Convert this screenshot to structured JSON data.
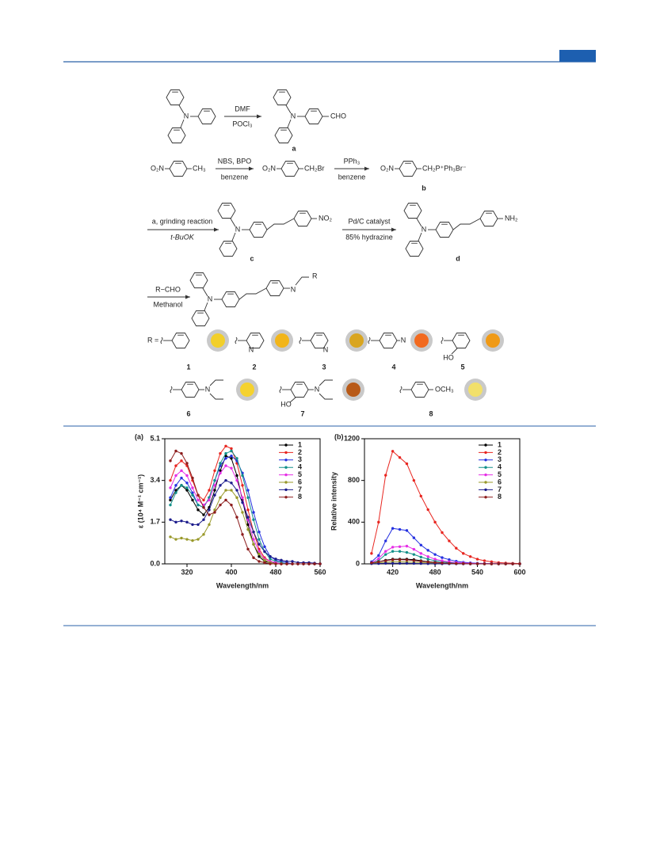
{
  "scheme": {
    "row1": {
      "reagents": [
        "DMF",
        "POCl₃"
      ],
      "groups": [
        "N",
        "N",
        "CHO"
      ],
      "label": "a"
    },
    "row2": {
      "groups": [
        "O₂N",
        "CH₃",
        "O₂N",
        "CH₂Br",
        "O₂N",
        "CH₂P⁺Ph₃Br⁻"
      ],
      "reagents": [
        "NBS, BPO",
        "benzene",
        "PPh₃",
        "benzene"
      ],
      "label": "b"
    },
    "row3": {
      "reagents": [
        "a, grinding reaction",
        "t-BuOK",
        "Pd/C catalyst",
        "85% hydrazine"
      ],
      "groups": [
        "N",
        "NO₂",
        "N",
        "NH₂"
      ],
      "labels": [
        "c",
        "d"
      ]
    },
    "row4": {
      "reagents": [
        "R−CHO",
        "Methanol"
      ],
      "groups": [
        "N",
        "N",
        "R"
      ]
    },
    "substituents": {
      "prefix": "R =",
      "groups": [
        "N",
        "N",
        "N",
        "HO",
        "N",
        "HO",
        "N",
        "OCH₃"
      ],
      "compounds": [
        "1",
        "2",
        "3",
        "4",
        "5",
        "6",
        "7",
        "8"
      ]
    }
  },
  "chart_data": [
    {
      "type": "line",
      "panel": "(a)",
      "xlabel": "Wavelength/nm",
      "ylabel": "ε (10⁴ M⁻¹ cm⁻¹)",
      "x": [
        290,
        300,
        310,
        320,
        330,
        340,
        350,
        360,
        370,
        380,
        390,
        400,
        410,
        420,
        430,
        440,
        450,
        460,
        470,
        480,
        490,
        500,
        510,
        520,
        530,
        540,
        550,
        560
      ],
      "xlim": [
        280,
        560
      ],
      "xticks": [
        320,
        400,
        480,
        560
      ],
      "ylim": [
        0,
        5.1
      ],
      "yticks": [
        {
          "value": 0,
          "label": "0.0"
        },
        1.7,
        3.4,
        5.1
      ],
      "legend": "upper right",
      "series": [
        {
          "name": "1",
          "color": "#000000",
          "values": [
            2.6,
            3.0,
            3.2,
            3.0,
            2.6,
            2.2,
            2.0,
            2.3,
            3.0,
            3.8,
            4.4,
            4.3,
            3.6,
            2.6,
            1.6,
            0.8,
            0.3,
            0.1,
            0.05,
            0.02,
            0,
            0,
            0,
            0,
            0,
            0,
            0,
            0
          ]
        },
        {
          "name": "2",
          "color": "#e8251f",
          "values": [
            3.4,
            4.0,
            4.2,
            4.0,
            3.4,
            2.8,
            2.6,
            3.0,
            3.8,
            4.5,
            4.8,
            4.7,
            4.1,
            3.2,
            2.2,
            1.3,
            0.6,
            0.25,
            0.1,
            0.05,
            0,
            0,
            0,
            0,
            0,
            0,
            0,
            0
          ]
        },
        {
          "name": "3",
          "color": "#2531e0",
          "values": [
            2.7,
            3.2,
            3.5,
            3.3,
            2.9,
            2.4,
            2.3,
            2.7,
            3.4,
            4.0,
            4.3,
            4.4,
            4.2,
            3.7,
            3.0,
            2.1,
            1.3,
            0.7,
            0.3,
            0.15,
            0.1,
            0.05,
            0,
            0,
            0,
            0,
            0,
            0
          ]
        },
        {
          "name": "4",
          "color": "#13918a",
          "values": [
            2.4,
            2.9,
            3.2,
            3.1,
            2.8,
            2.4,
            2.3,
            2.7,
            3.4,
            4.1,
            4.5,
            4.6,
            4.3,
            3.6,
            2.7,
            1.8,
            1.0,
            0.5,
            0.2,
            0.1,
            0.05,
            0,
            0,
            0,
            0,
            0,
            0,
            0
          ]
        },
        {
          "name": "5",
          "color": "#e62ee6",
          "values": [
            3.1,
            3.6,
            3.8,
            3.6,
            3.1,
            2.6,
            2.4,
            2.6,
            3.2,
            3.7,
            4.0,
            3.9,
            3.4,
            2.7,
            1.8,
            1.0,
            0.5,
            0.2,
            0.1,
            0.05,
            0,
            0,
            0,
            0,
            0,
            0,
            0,
            0
          ]
        },
        {
          "name": "6",
          "color": "#99992a",
          "values": [
            1.1,
            1.0,
            1.05,
            1.0,
            0.95,
            1.0,
            1.2,
            1.6,
            2.2,
            2.7,
            3.0,
            3.0,
            2.7,
            2.1,
            1.4,
            0.8,
            0.4,
            0.15,
            0.05,
            0,
            0,
            0,
            0,
            0,
            0,
            0,
            0,
            0
          ]
        },
        {
          "name": "7",
          "color": "#1c1c8c",
          "values": [
            1.8,
            1.7,
            1.75,
            1.7,
            1.6,
            1.6,
            1.8,
            2.2,
            2.8,
            3.2,
            3.4,
            3.3,
            3.0,
            2.5,
            1.9,
            1.3,
            0.8,
            0.5,
            0.3,
            0.2,
            0.15,
            0.1,
            0.1,
            0.05,
            0.05,
            0.05,
            0.03,
            0
          ]
        },
        {
          "name": "8",
          "color": "#8c1c1c",
          "values": [
            4.2,
            4.6,
            4.5,
            4.1,
            3.5,
            2.8,
            2.3,
            2.0,
            2.1,
            2.4,
            2.6,
            2.4,
            1.9,
            1.2,
            0.6,
            0.25,
            0.1,
            0.05,
            0,
            0,
            0,
            0,
            0,
            0,
            0,
            0,
            0,
            0
          ]
        }
      ]
    },
    {
      "type": "line",
      "panel": "(b)",
      "xlabel": "Wavelength/nm",
      "ylabel": "Relative intensity",
      "x": [
        390,
        400,
        410,
        420,
        430,
        440,
        450,
        460,
        470,
        480,
        490,
        500,
        510,
        520,
        530,
        540,
        550,
        560,
        570,
        580,
        590,
        600
      ],
      "xlim": [
        380,
        600
      ],
      "xticks": [
        420,
        480,
        540,
        600
      ],
      "ylim": [
        0,
        1200
      ],
      "yticks": [
        0,
        400,
        800,
        1200
      ],
      "legend": "upper right",
      "series": [
        {
          "name": "1",
          "color": "#000000",
          "values": [
            10,
            20,
            35,
            45,
            45,
            45,
            40,
            30,
            20,
            15,
            10,
            6,
            4,
            2,
            1,
            1,
            0,
            0,
            0,
            0,
            0,
            0
          ]
        },
        {
          "name": "2",
          "color": "#e8251f",
          "values": [
            100,
            400,
            850,
            1080,
            1020,
            960,
            800,
            650,
            520,
            400,
            300,
            220,
            150,
            100,
            70,
            45,
            30,
            20,
            12,
            8,
            5,
            3
          ]
        },
        {
          "name": "3",
          "color": "#2531e0",
          "values": [
            20,
            80,
            220,
            340,
            330,
            320,
            250,
            180,
            130,
            90,
            60,
            40,
            25,
            15,
            10,
            6,
            4,
            3,
            2,
            1,
            1,
            0
          ]
        },
        {
          "name": "4",
          "color": "#13918a",
          "values": [
            5,
            30,
            90,
            120,
            120,
            110,
            90,
            65,
            45,
            30,
            20,
            12,
            8,
            5,
            3,
            2,
            1,
            1,
            0,
            0,
            0,
            0
          ]
        },
        {
          "name": "5",
          "color": "#e62ee6",
          "values": [
            10,
            50,
            120,
            160,
            165,
            170,
            140,
            100,
            70,
            45,
            30,
            20,
            12,
            8,
            5,
            3,
            2,
            1,
            1,
            0,
            0,
            0
          ]
        },
        {
          "name": "6",
          "color": "#99992a",
          "values": [
            5,
            10,
            15,
            20,
            20,
            18,
            15,
            12,
            8,
            5,
            3,
            2,
            1,
            1,
            0,
            0,
            0,
            0,
            0,
            0,
            0,
            0
          ]
        },
        {
          "name": "7",
          "color": "#1c1c8c",
          "values": [
            2,
            3,
            5,
            5,
            5,
            5,
            4,
            3,
            2,
            2,
            1,
            1,
            1,
            0,
            0,
            0,
            0,
            0,
            0,
            0,
            0,
            0
          ]
        },
        {
          "name": "8",
          "color": "#8c1c1c",
          "values": [
            10,
            20,
            30,
            40,
            40,
            38,
            32,
            25,
            18,
            12,
            8,
            5,
            3,
            2,
            1,
            1,
            0,
            0,
            0,
            0,
            0,
            0
          ]
        }
      ]
    }
  ]
}
